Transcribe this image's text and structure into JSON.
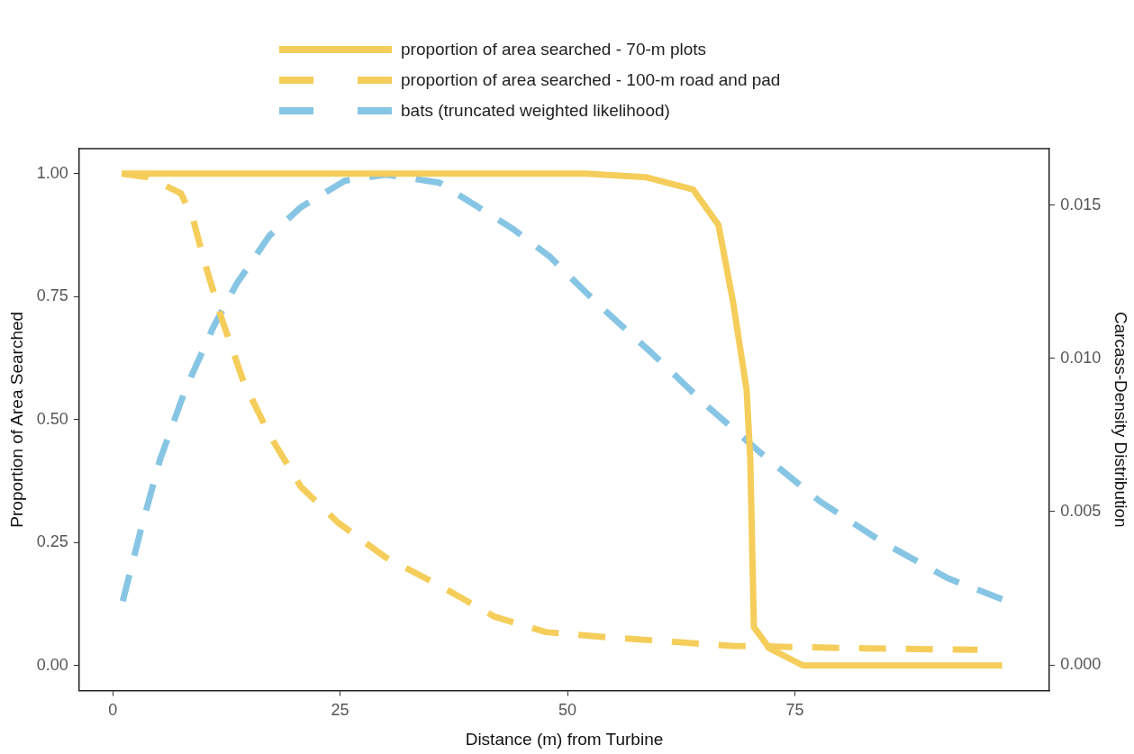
{
  "chart_data": {
    "type": "line",
    "xlabel": "Distance (m) from Turbine",
    "ylabel": "Proportion of Area Searched",
    "y2label": "Carcass-Density Distribution",
    "xlim": [
      -3.7,
      103
    ],
    "xticks": [
      0,
      25,
      50,
      75
    ],
    "ylim": [
      -0.051,
      1.051
    ],
    "yticks": [
      {
        "value": 0,
        "label": "0.00"
      },
      {
        "value": 0.25,
        "label": "0.25"
      },
      {
        "value": 0.5,
        "label": "0.50"
      },
      {
        "value": 0.75,
        "label": "0.75"
      },
      {
        "value": 1,
        "label": "1.00"
      }
    ],
    "y2lim": [
      -0.00084,
      0.01685
    ],
    "y2ticks": [
      {
        "value": 0,
        "label": "0.000"
      },
      0.005,
      {
        "value": 0.01,
        "label": "0.010"
      },
      0.015
    ],
    "grid": false,
    "legend": "top",
    "marker": "none",
    "series": [
      {
        "name": "proportion of area searched - 70-m plots",
        "color": "#f5cd5a",
        "line_style": "solid",
        "x": [
          1,
          52,
          58.6,
          63.8,
          66.6,
          68.2,
          69.7,
          70.1,
          70.5,
          72.2,
          75.9,
          97.8
        ],
        "values": [
          1,
          1,
          0.993,
          0.968,
          0.896,
          0.74,
          0.56,
          0.42,
          0.078,
          0.035,
          0,
          0
        ]
      },
      {
        "name": "proportion of area searched - 100-m road and pad",
        "color": "#f5cd5a",
        "line_style": "dashed",
        "x": [
          1,
          3.9,
          7.5,
          8.8,
          10,
          12,
          14.4,
          17.2,
          20.7,
          24.8,
          30,
          35.9,
          42,
          47.6,
          54.6,
          68.1,
          82.6,
          95.1
        ],
        "values": [
          1,
          0.993,
          0.96,
          0.91,
          0.826,
          0.704,
          0.576,
          0.47,
          0.363,
          0.29,
          0.22,
          0.163,
          0.099,
          0.068,
          0.057,
          0.04,
          0.035,
          0.032
        ]
      },
      {
        "name": "bats (truncated weighted likelihood)",
        "color": "#87c5e4",
        "line_style": "dashed",
        "axis": "y2",
        "x": [
          1.1,
          3.1,
          5.2,
          8,
          11.1,
          13.6,
          17.2,
          20.7,
          25.5,
          30,
          35.9,
          43.9,
          48,
          53.3,
          59.4,
          65.4,
          71.4,
          77.7,
          84.5,
          91.8,
          97.8
        ],
        "values": [
          0.00208,
          0.00442,
          0.0067,
          0.009,
          0.01105,
          0.01243,
          0.014,
          0.01494,
          0.0158,
          0.016,
          0.01574,
          0.01425,
          0.01334,
          0.01179,
          0.01014,
          0.00844,
          0.00688,
          0.00535,
          0.00403,
          0.00283,
          0.00214
        ]
      }
    ]
  }
}
